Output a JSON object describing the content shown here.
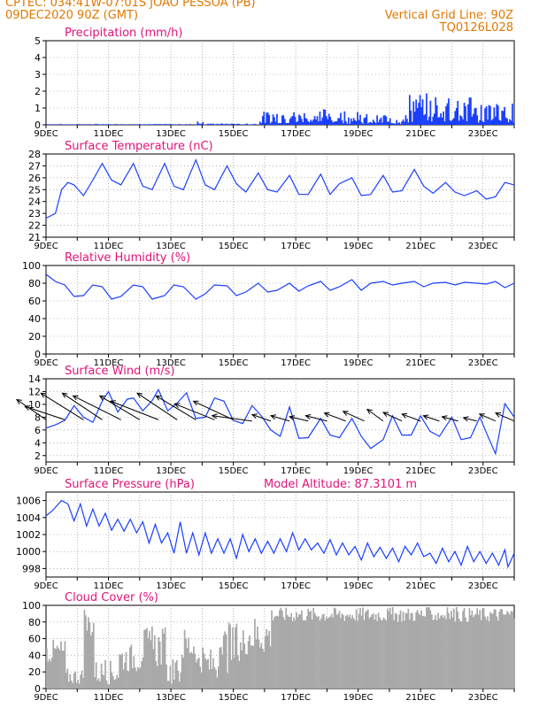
{
  "header": {
    "line1": "CPTEC:   034:41W-07:01S  JOAO PESSOA (PB)",
    "line2": "09DEC2020 90Z (GMT)",
    "grid_note": "Vertical Grid Line: 90Z",
    "code": "TQ0126L028"
  },
  "colors": {
    "title": "#e0147a",
    "header": "#e07800",
    "series": "#1a3fff",
    "cloud": "#a9a9a9",
    "arrow": "#000000"
  },
  "chart_data": [
    {
      "type": "bar",
      "title": "Precipitation (mm/h)",
      "ylim": [
        0,
        5
      ],
      "yticks": [
        "0",
        "1",
        "2",
        "3",
        "4",
        "5"
      ],
      "xticks": [
        "9DEC",
        "11DEC",
        "13DEC",
        "15DEC",
        "17DEC",
        "19DEC",
        "21DEC",
        "23DEC"
      ],
      "day_range": [
        9,
        24
      ],
      "segments": [
        {
          "from": 9.0,
          "to": 13.8,
          "base": 0.02,
          "amp": 0.03
        },
        {
          "from": 13.8,
          "to": 14.0,
          "base": 0.15,
          "amp": 0.1
        },
        {
          "from": 14.0,
          "to": 15.8,
          "base": 0.03,
          "amp": 0.05
        },
        {
          "from": 15.8,
          "to": 17.8,
          "base": 0.3,
          "amp": 0.5
        },
        {
          "from": 17.8,
          "to": 19.0,
          "base": 0.2,
          "amp": 0.8
        },
        {
          "from": 19.0,
          "to": 20.6,
          "base": 0.15,
          "amp": 0.5
        },
        {
          "from": 20.6,
          "to": 22.6,
          "base": 0.5,
          "amp": 1.4
        },
        {
          "from": 22.6,
          "to": 24.0,
          "base": 0.4,
          "amp": 0.9
        }
      ]
    },
    {
      "type": "line",
      "title": "Surface Temperature (nC)",
      "ylim": [
        21,
        28
      ],
      "yticks": [
        "21",
        "22",
        "23",
        "24",
        "25",
        "26",
        "27",
        "28"
      ],
      "xticks": [
        "9DEC",
        "11DEC",
        "13DEC",
        "15DEC",
        "17DEC",
        "19DEC",
        "21DEC",
        "23DEC"
      ],
      "day_range": [
        9,
        24
      ],
      "points": [
        [
          9.0,
          22.6
        ],
        [
          9.3,
          23.0
        ],
        [
          9.5,
          25.0
        ],
        [
          9.7,
          25.6
        ],
        [
          9.9,
          25.4
        ],
        [
          10.2,
          24.5
        ],
        [
          10.5,
          25.8
        ],
        [
          10.8,
          27.2
        ],
        [
          11.1,
          25.8
        ],
        [
          11.4,
          25.4
        ],
        [
          11.8,
          27.2
        ],
        [
          12.1,
          25.3
        ],
        [
          12.4,
          25.0
        ],
        [
          12.8,
          27.2
        ],
        [
          13.1,
          25.3
        ],
        [
          13.4,
          25.0
        ],
        [
          13.8,
          27.5
        ],
        [
          14.1,
          25.4
        ],
        [
          14.4,
          25.0
        ],
        [
          14.8,
          27.0
        ],
        [
          15.1,
          25.5
        ],
        [
          15.4,
          24.8
        ],
        [
          15.8,
          26.4
        ],
        [
          16.1,
          25.0
        ],
        [
          16.4,
          24.8
        ],
        [
          16.8,
          26.2
        ],
        [
          17.1,
          24.6
        ],
        [
          17.4,
          24.6
        ],
        [
          17.8,
          26.3
        ],
        [
          18.1,
          24.6
        ],
        [
          18.4,
          25.5
        ],
        [
          18.8,
          26.0
        ],
        [
          19.1,
          24.5
        ],
        [
          19.4,
          24.6
        ],
        [
          19.8,
          26.2
        ],
        [
          20.1,
          24.8
        ],
        [
          20.4,
          24.9
        ],
        [
          20.8,
          26.7
        ],
        [
          21.1,
          25.3
        ],
        [
          21.4,
          24.7
        ],
        [
          21.8,
          25.6
        ],
        [
          22.1,
          24.8
        ],
        [
          22.4,
          24.5
        ],
        [
          22.8,
          24.9
        ],
        [
          23.1,
          24.2
        ],
        [
          23.4,
          24.4
        ],
        [
          23.7,
          25.6
        ],
        [
          24.0,
          25.4
        ]
      ]
    },
    {
      "type": "line",
      "title": "Relative Humidity (%)",
      "ylim": [
        0,
        100
      ],
      "yticks": [
        "0",
        "20",
        "40",
        "60",
        "80",
        "100"
      ],
      "xticks": [
        "9DEC",
        "11DEC",
        "13DEC",
        "15DEC",
        "17DEC",
        "19DEC",
        "21DEC",
        "23DEC"
      ],
      "day_range": [
        9,
        24
      ],
      "points": [
        [
          9.0,
          90
        ],
        [
          9.3,
          82
        ],
        [
          9.6,
          78
        ],
        [
          9.9,
          65
        ],
        [
          10.2,
          66
        ],
        [
          10.5,
          78
        ],
        [
          10.8,
          76
        ],
        [
          11.1,
          62
        ],
        [
          11.4,
          65
        ],
        [
          11.8,
          78
        ],
        [
          12.1,
          76
        ],
        [
          12.4,
          62
        ],
        [
          12.8,
          66
        ],
        [
          13.1,
          78
        ],
        [
          13.4,
          76
        ],
        [
          13.8,
          62
        ],
        [
          14.1,
          68
        ],
        [
          14.4,
          78
        ],
        [
          14.8,
          77
        ],
        [
          15.1,
          66
        ],
        [
          15.4,
          70
        ],
        [
          15.8,
          80
        ],
        [
          16.1,
          70
        ],
        [
          16.4,
          72
        ],
        [
          16.8,
          80
        ],
        [
          17.1,
          71
        ],
        [
          17.4,
          77
        ],
        [
          17.8,
          82
        ],
        [
          18.1,
          72
        ],
        [
          18.4,
          76
        ],
        [
          18.8,
          84
        ],
        [
          19.1,
          72
        ],
        [
          19.4,
          80
        ],
        [
          19.8,
          82
        ],
        [
          20.1,
          78
        ],
        [
          20.4,
          80
        ],
        [
          20.8,
          82
        ],
        [
          21.1,
          76
        ],
        [
          21.4,
          80
        ],
        [
          21.8,
          81
        ],
        [
          22.1,
          78
        ],
        [
          22.4,
          81
        ],
        [
          22.8,
          80
        ],
        [
          23.1,
          79
        ],
        [
          23.4,
          82
        ],
        [
          23.7,
          75
        ],
        [
          24.0,
          80
        ]
      ]
    },
    {
      "type": "line",
      "title": "Surface Wind (m/s)",
      "ylim": [
        1,
        14
      ],
      "yticks": [
        "2",
        "4",
        "6",
        "8",
        "10",
        "12",
        "14"
      ],
      "xticks": [
        "9DEC",
        "11DEC",
        "13DEC",
        "15DEC",
        "17DEC",
        "19DEC",
        "21DEC",
        "23DEC"
      ],
      "day_range": [
        9,
        24
      ],
      "points": [
        [
          9.0,
          6.3
        ],
        [
          9.3,
          6.8
        ],
        [
          9.6,
          7.5
        ],
        [
          9.9,
          9.8
        ],
        [
          10.2,
          8.0
        ],
        [
          10.5,
          7.2
        ],
        [
          10.8,
          10.5
        ],
        [
          11.0,
          12.0
        ],
        [
          11.3,
          8.8
        ],
        [
          11.6,
          10.8
        ],
        [
          11.8,
          11.0
        ],
        [
          12.1,
          9.0
        ],
        [
          12.4,
          10.6
        ],
        [
          12.6,
          12.3
        ],
        [
          12.9,
          9.0
        ],
        [
          13.2,
          10.2
        ],
        [
          13.5,
          11.8
        ],
        [
          13.8,
          7.8
        ],
        [
          14.1,
          8.0
        ],
        [
          14.4,
          11.0
        ],
        [
          14.7,
          10.5
        ],
        [
          15.0,
          7.5
        ],
        [
          15.3,
          7.0
        ],
        [
          15.6,
          9.8
        ],
        [
          15.9,
          8.2
        ],
        [
          16.2,
          6.0
        ],
        [
          16.5,
          5.0
        ],
        [
          16.8,
          9.6
        ],
        [
          17.1,
          4.7
        ],
        [
          17.4,
          4.8
        ],
        [
          17.8,
          7.8
        ],
        [
          18.1,
          5.2
        ],
        [
          18.4,
          4.8
        ],
        [
          18.8,
          7.8
        ],
        [
          19.1,
          5.0
        ],
        [
          19.4,
          3.1
        ],
        [
          19.8,
          4.5
        ],
        [
          20.1,
          8.2
        ],
        [
          20.4,
          5.2
        ],
        [
          20.7,
          5.2
        ],
        [
          21.0,
          8.2
        ],
        [
          21.3,
          5.8
        ],
        [
          21.6,
          5.0
        ],
        [
          22.0,
          8.0
        ],
        [
          22.3,
          4.5
        ],
        [
          22.6,
          4.8
        ],
        [
          22.9,
          8.0
        ],
        [
          23.2,
          4.5
        ],
        [
          23.4,
          2.3
        ],
        [
          23.7,
          10.1
        ],
        [
          24.0,
          8.0
        ]
      ],
      "arrows": [
        [
          9.0,
          7.6,
          -0.55,
          0.38
        ],
        [
          9.6,
          7.6,
          -0.75,
          0.25
        ],
        [
          10.2,
          7.6,
          -0.8,
          0.5
        ],
        [
          10.8,
          7.6,
          -0.75,
          0.5
        ],
        [
          11.4,
          7.6,
          -0.9,
          0.45
        ],
        [
          12.0,
          7.6,
          -0.75,
          0.45
        ],
        [
          12.6,
          7.6,
          -0.9,
          0.35
        ],
        [
          13.2,
          7.6,
          -0.75,
          0.5
        ],
        [
          13.8,
          7.6,
          -0.75,
          0.45
        ],
        [
          14.4,
          7.6,
          -0.75,
          0.3
        ],
        [
          15.0,
          7.6,
          -0.75,
          0.35
        ],
        [
          15.6,
          7.4,
          -0.75,
          0.1
        ],
        [
          16.2,
          7.4,
          -0.35,
          0.12
        ],
        [
          16.8,
          7.4,
          -0.35,
          0.1
        ],
        [
          17.4,
          7.4,
          -0.35,
          0.08
        ],
        [
          18.0,
          7.4,
          -0.4,
          0.1
        ],
        [
          18.6,
          7.4,
          -0.4,
          0.15
        ],
        [
          19.2,
          7.4,
          -0.4,
          0.18
        ],
        [
          19.8,
          7.4,
          -0.3,
          0.22
        ],
        [
          20.4,
          7.4,
          -0.35,
          0.16
        ],
        [
          21.0,
          7.4,
          -0.35,
          0.13
        ],
        [
          21.6,
          7.4,
          -0.3,
          0.1
        ],
        [
          22.2,
          7.4,
          -0.3,
          0.08
        ],
        [
          22.8,
          7.4,
          -0.25,
          0.06
        ],
        [
          23.4,
          7.4,
          -0.3,
          0.13
        ],
        [
          24.0,
          7.4,
          -0.35,
          0.15
        ]
      ]
    },
    {
      "type": "line",
      "title": "Surface Pressure (hPa)",
      "annotation": "Model Altitude: 87.3101 m",
      "ylim": [
        997,
        1007
      ],
      "yticks": [
        "998",
        "1000",
        "1002",
        "1004",
        "1006"
      ],
      "xticks": [
        "9DEC",
        "11DEC",
        "13DEC",
        "15DEC",
        "17DEC",
        "19DEC",
        "21DEC",
        "23DEC"
      ],
      "day_range": [
        9,
        24
      ],
      "points": [
        [
          9.0,
          1004.2
        ],
        [
          9.2,
          1004.8
        ],
        [
          9.4,
          1005.6
        ],
        [
          9.5,
          1006.0
        ],
        [
          9.7,
          1005.6
        ],
        [
          9.9,
          1003.6
        ],
        [
          10.1,
          1005.6
        ],
        [
          10.3,
          1003.0
        ],
        [
          10.5,
          1005.0
        ],
        [
          10.7,
          1003.0
        ],
        [
          10.9,
          1004.5
        ],
        [
          11.1,
          1002.5
        ],
        [
          11.3,
          1003.8
        ],
        [
          11.5,
          1002.4
        ],
        [
          11.7,
          1003.8
        ],
        [
          11.9,
          1002.2
        ],
        [
          12.1,
          1003.5
        ],
        [
          12.3,
          1001.0
        ],
        [
          12.5,
          1003.2
        ],
        [
          12.7,
          1001.0
        ],
        [
          12.9,
          1002.2
        ],
        [
          13.1,
          999.8
        ],
        [
          13.3,
          1003.5
        ],
        [
          13.5,
          999.8
        ],
        [
          13.7,
          1002.2
        ],
        [
          13.9,
          999.6
        ],
        [
          14.1,
          1002.2
        ],
        [
          14.3,
          999.8
        ],
        [
          14.5,
          1001.5
        ],
        [
          14.7,
          999.8
        ],
        [
          14.9,
          1001.5
        ],
        [
          15.1,
          999.2
        ],
        [
          15.3,
          1002.0
        ],
        [
          15.5,
          1000.0
        ],
        [
          15.7,
          1001.5
        ],
        [
          15.9,
          999.8
        ],
        [
          16.1,
          1001.2
        ],
        [
          16.3,
          999.8
        ],
        [
          16.5,
          1001.5
        ],
        [
          16.7,
          1000.0
        ],
        [
          16.9,
          1002.2
        ],
        [
          17.1,
          1000.2
        ],
        [
          17.3,
          1001.5
        ],
        [
          17.5,
          1000.2
        ],
        [
          17.7,
          1001.0
        ],
        [
          17.9,
          999.8
        ],
        [
          18.1,
          1001.4
        ],
        [
          18.3,
          999.6
        ],
        [
          18.5,
          1001.0
        ],
        [
          18.7,
          999.6
        ],
        [
          18.9,
          1000.6
        ],
        [
          19.1,
          999.0
        ],
        [
          19.3,
          1001.0
        ],
        [
          19.5,
          999.4
        ],
        [
          19.7,
          1000.5
        ],
        [
          19.9,
          999.2
        ],
        [
          20.1,
          1000.4
        ],
        [
          20.3,
          998.8
        ],
        [
          20.5,
          1000.6
        ],
        [
          20.7,
          999.6
        ],
        [
          20.9,
          1001.0
        ],
        [
          21.1,
          999.4
        ],
        [
          21.3,
          999.8
        ],
        [
          21.5,
          998.6
        ],
        [
          21.7,
          1000.4
        ],
        [
          21.9,
          998.8
        ],
        [
          22.1,
          1000.0
        ],
        [
          22.3,
          998.4
        ],
        [
          22.5,
          1000.6
        ],
        [
          22.7,
          998.8
        ],
        [
          22.9,
          1000.0
        ],
        [
          23.1,
          998.6
        ],
        [
          23.3,
          999.8
        ],
        [
          23.5,
          998.4
        ],
        [
          23.7,
          1000.2
        ],
        [
          23.8,
          998.2
        ],
        [
          24.0,
          999.8
        ]
      ]
    },
    {
      "type": "area",
      "title": "Cloud Cover (%)",
      "ylim": [
        0,
        100
      ],
      "yticks": [
        "0",
        "20",
        "40",
        "60",
        "80",
        "100"
      ],
      "xticks": [
        "9DEC",
        "11DEC",
        "13DEC",
        "15DEC",
        "17DEC",
        "19DEC",
        "21DEC",
        "23DEC"
      ],
      "day_range": [
        9,
        24
      ],
      "segments": [
        {
          "from": 9.0,
          "to": 9.6,
          "base": 30,
          "amp": 30
        },
        {
          "from": 9.6,
          "to": 10.2,
          "base": 5,
          "amp": 20
        },
        {
          "from": 10.2,
          "to": 10.5,
          "base": 60,
          "amp": 35
        },
        {
          "from": 10.5,
          "to": 11.3,
          "base": 5,
          "amp": 30
        },
        {
          "from": 11.3,
          "to": 12.0,
          "base": 20,
          "amp": 35
        },
        {
          "from": 12.0,
          "to": 12.8,
          "base": 25,
          "amp": 50
        },
        {
          "from": 12.8,
          "to": 13.3,
          "base": 5,
          "amp": 30
        },
        {
          "from": 13.3,
          "to": 13.8,
          "base": 30,
          "amp": 45
        },
        {
          "from": 13.8,
          "to": 14.6,
          "base": 10,
          "amp": 40
        },
        {
          "from": 14.6,
          "to": 15.3,
          "base": 15,
          "amp": 65
        },
        {
          "from": 15.3,
          "to": 16.2,
          "base": 40,
          "amp": 50
        },
        {
          "from": 16.2,
          "to": 24.0,
          "base": 80,
          "amp": 18
        }
      ]
    }
  ]
}
